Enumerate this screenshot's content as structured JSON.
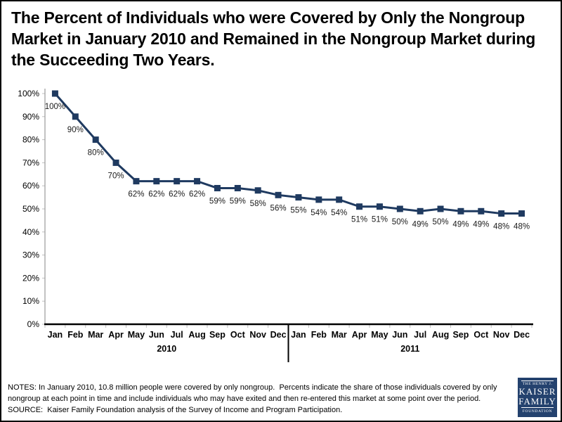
{
  "title": "The Percent of Individuals who were Covered by Only the Nongroup Market in January 2010 and Remained in the Nongroup Market during the Succeeding Two Years.",
  "chart_data": {
    "type": "line",
    "categories": [
      "Jan",
      "Feb",
      "Mar",
      "Apr",
      "May",
      "Jun",
      "Jul",
      "Aug",
      "Sep",
      "Oct",
      "Nov",
      "Dec",
      "Jan",
      "Feb",
      "Mar",
      "Apr",
      "May",
      "Jun",
      "Jul",
      "Aug",
      "Sep",
      "Oct",
      "Nov",
      "Dec"
    ],
    "year_groups": [
      {
        "label": "2010",
        "start": 0,
        "end": 11
      },
      {
        "label": "2011",
        "start": 12,
        "end": 23
      }
    ],
    "values": [
      100,
      90,
      80,
      70,
      62,
      62,
      62,
      62,
      59,
      59,
      58,
      56,
      55,
      54,
      54,
      51,
      51,
      50,
      49,
      50,
      49,
      49,
      48,
      48
    ],
    "point_labels": [
      "100%",
      "90%",
      "80%",
      "70%",
      "62%",
      "62%",
      "62%",
      "62%",
      "59%",
      "59%",
      "58%",
      "56%",
      "55%",
      "54%",
      "54%",
      "51%",
      "51%",
      "50%",
      "49%",
      "50%",
      "49%",
      "49%",
      "48%",
      "48%"
    ],
    "y_ticks": [
      "0%",
      "10%",
      "20%",
      "30%",
      "40%",
      "50%",
      "60%",
      "70%",
      "80%",
      "90%",
      "100%"
    ],
    "ylim": [
      0,
      100
    ],
    "xlabel": "",
    "ylabel": "",
    "grid": false,
    "legend": false,
    "line_color": "#1F3A60",
    "marker": "square",
    "axis_color": "#000000",
    "yaxis_line_color": "#999999",
    "tick_color": "#BFBFBF"
  },
  "notes": {
    "lines": [
      "NOTES: In January 2010, 10.8 million people were covered by only nongroup.  Percents indicate the share of those individuals covered by only",
      "nongroup at each point in time and include individuals who may have exited and then re-entered this market at some point over the period.",
      "SOURCE:  Kaiser Family Foundation analysis of the Survey of Income and Program Participation."
    ]
  },
  "logo": {
    "line1": "THE HENRY J.",
    "line2": "KAISER",
    "line3": "FAMILY",
    "line4": "FOUNDATION",
    "bg_color": "#24426E"
  }
}
